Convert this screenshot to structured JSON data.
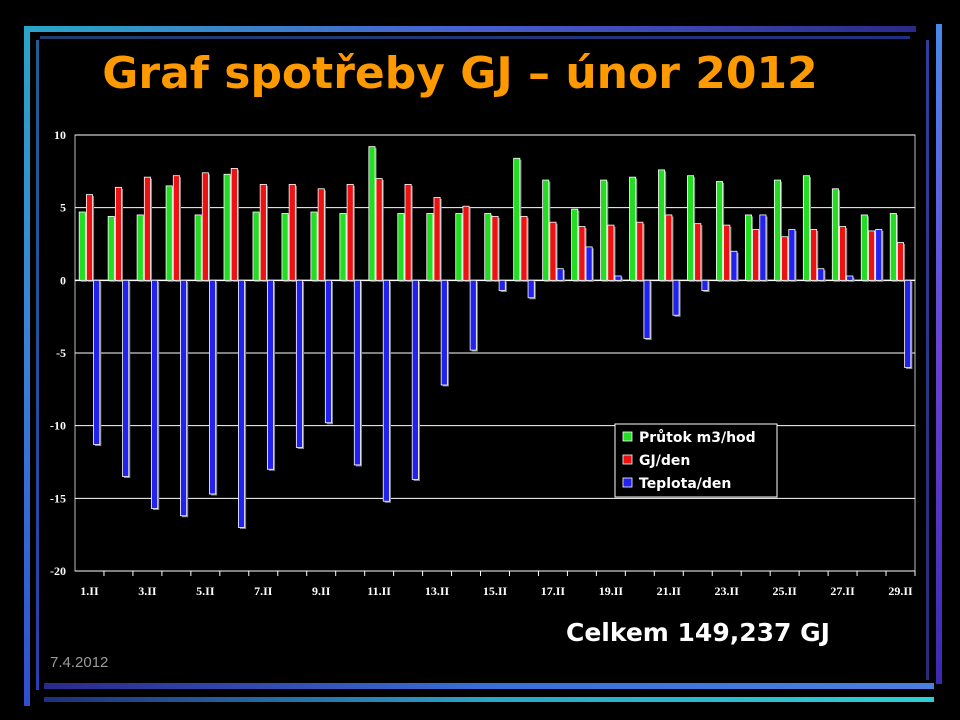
{
  "slide": {
    "title": "Graf spotřeby GJ – únor 2012",
    "total": "Celkem 149,237 GJ",
    "date": "7.4.2012"
  },
  "colors": {
    "background": "#000000",
    "title": "#ff9900",
    "plot_area": "#000000",
    "grid": "#ffffff",
    "series_prutok": "#22dd22",
    "series_gj": "#ee1111",
    "series_teplota": "#2222ee"
  },
  "chart_data": {
    "type": "bar",
    "title": "",
    "xlabel": "",
    "ylabel": "",
    "ylim": [
      -20,
      10
    ],
    "yticks": [
      10,
      5,
      0,
      -5,
      -10,
      -15,
      -20
    ],
    "grid": true,
    "legend_position": "bottom-right",
    "categories": [
      "1.II",
      "2.II",
      "3.II",
      "4.II",
      "5.II",
      "6.II",
      "7.II",
      "8.II",
      "9.II",
      "10.II",
      "11.II",
      "12.II",
      "13.II",
      "14.II",
      "15.II",
      "16.II",
      "17.II",
      "18.II",
      "19.II",
      "20.II",
      "21.II",
      "22.II",
      "23.II",
      "24.II",
      "25.II",
      "26.II",
      "27.II",
      "28.II",
      "29.II"
    ],
    "xtick_labels": [
      "1.II",
      "",
      "3.II",
      "",
      "5.II",
      "",
      "7.II",
      "",
      "9.II",
      "",
      "11.II",
      "",
      "13.II",
      "",
      "15.II",
      "",
      "17.II",
      "",
      "19.II",
      "",
      "21.II",
      "",
      "23.II",
      "",
      "25.II",
      "",
      "27.II",
      "",
      "29.II"
    ],
    "series": [
      {
        "name": "Průtok m3/hod",
        "values": [
          4.7,
          4.4,
          4.5,
          6.5,
          4.5,
          7.3,
          4.7,
          4.6,
          4.7,
          4.6,
          9.2,
          4.6,
          4.6,
          4.6,
          4.6,
          8.4,
          6.9,
          4.9,
          6.9,
          7.1,
          7.6,
          7.2,
          6.8,
          4.5,
          6.9,
          7.2,
          6.3,
          4.5,
          4.6
        ]
      },
      {
        "name": "GJ/den",
        "values": [
          5.9,
          6.4,
          7.1,
          7.2,
          7.4,
          7.7,
          6.6,
          6.6,
          6.3,
          6.6,
          7.0,
          6.6,
          5.7,
          5.1,
          4.4,
          4.4,
          4.0,
          3.7,
          3.8,
          4.0,
          4.5,
          3.9,
          3.8,
          3.5,
          3.0,
          3.5,
          3.7,
          3.4,
          2.6
        ]
      },
      {
        "name": "Teplota/den",
        "values": [
          -11.3,
          -13.5,
          -15.7,
          -16.2,
          -14.7,
          -17.0,
          -13.0,
          -11.5,
          -9.8,
          -12.7,
          -15.2,
          -13.7,
          -7.2,
          -4.8,
          -0.7,
          -1.2,
          0.8,
          2.3,
          0.3,
          -4.0,
          -2.4,
          -0.7,
          2.0,
          4.5,
          3.5,
          0.8,
          0.3,
          3.5,
          -6.0
        ]
      }
    ]
  }
}
